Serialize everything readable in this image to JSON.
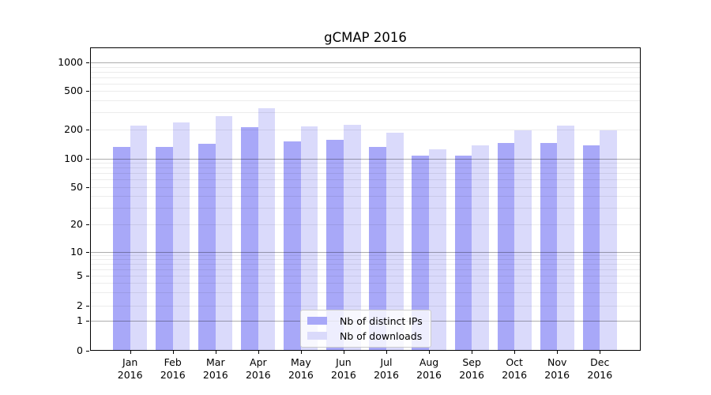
{
  "chart_data": {
    "type": "bar",
    "title": "gCMAP 2016",
    "year_label": "2016",
    "categories": [
      "Jan",
      "Feb",
      "Mar",
      "Apr",
      "May",
      "Jun",
      "Jul",
      "Aug",
      "Sep",
      "Oct",
      "Nov",
      "Dec"
    ],
    "series": [
      {
        "name": "Nb of distinct IPs",
        "color": "#a8a8f8",
        "values": [
          131,
          133,
          143,
          214,
          152,
          158,
          132,
          107,
          107,
          145,
          145,
          136
        ]
      },
      {
        "name": "Nb of downloads",
        "color": "#dadafb",
        "values": [
          221,
          238,
          274,
          331,
          217,
          226,
          185,
          125,
          136,
          197,
          219,
          196
        ]
      }
    ],
    "y_ticks": [
      0,
      1,
      2,
      5,
      10,
      20,
      50,
      100,
      200,
      500,
      1000
    ],
    "y_scale": "log-like (linear 0-1, logarithmic above 1)",
    "ylim": [
      0,
      1400
    ],
    "xlabel": "",
    "ylabel": "",
    "grid": "horizontal minor gridlines light gray, major gridlines at 1, 10, 100, 1000 darker gray",
    "legend_position": "lower center"
  }
}
